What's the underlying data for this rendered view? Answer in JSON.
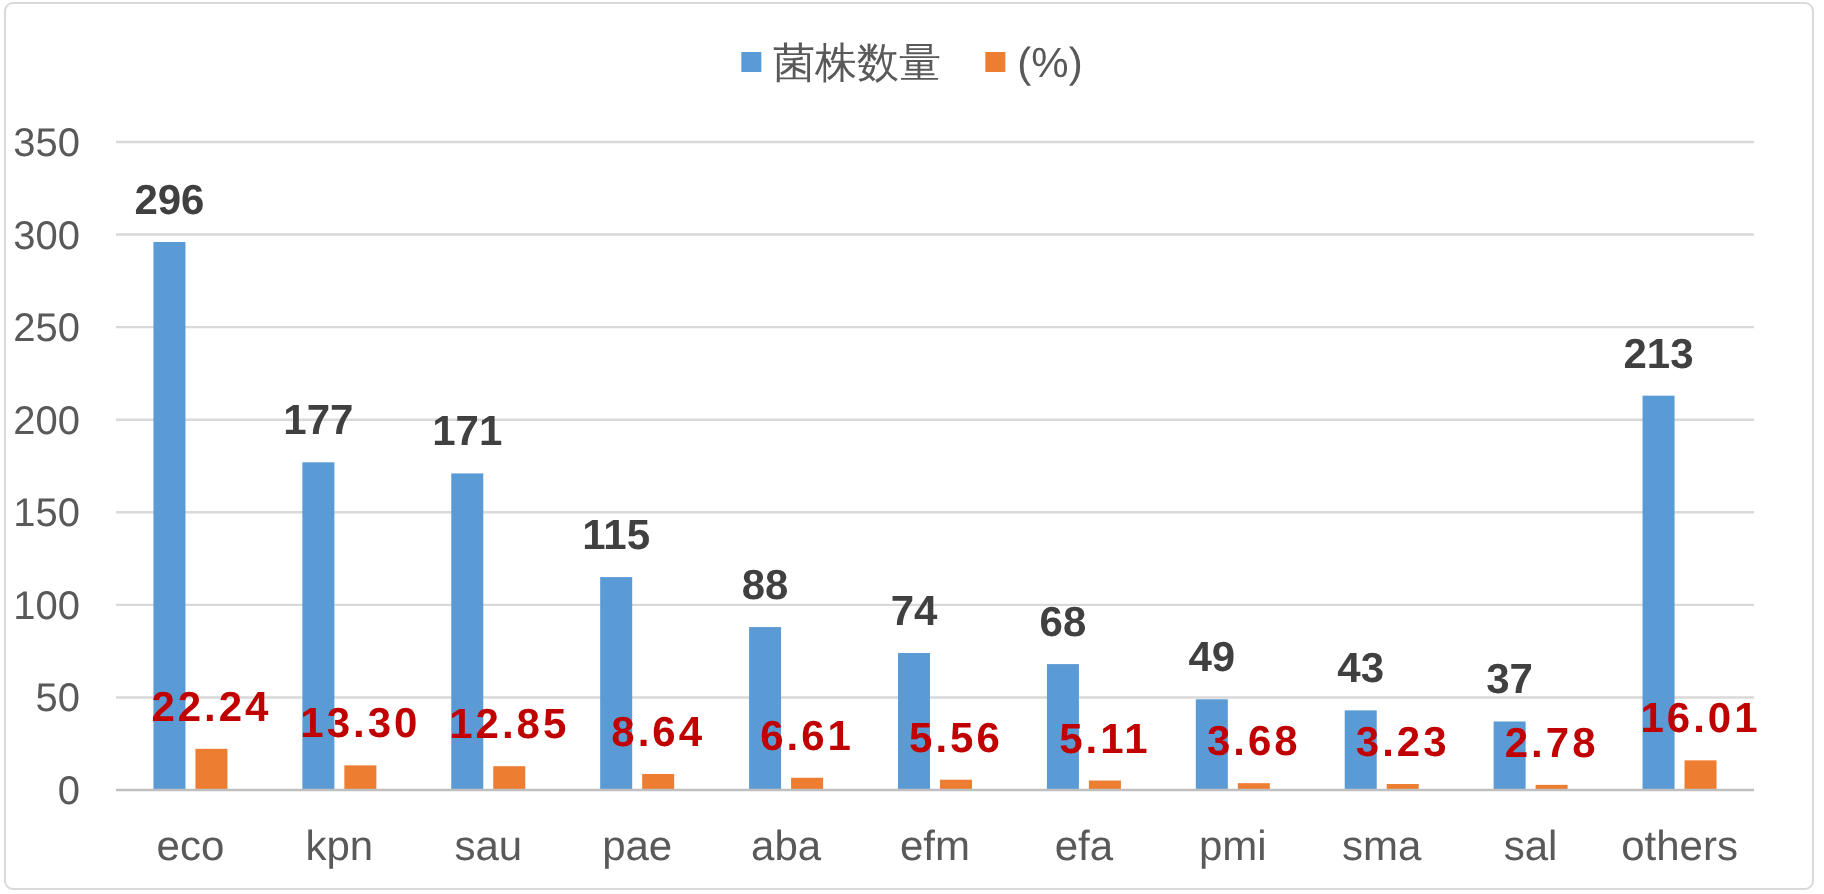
{
  "chart_data": {
    "type": "bar",
    "categories": [
      "eco",
      "kpn",
      "sau",
      "pae",
      "aba",
      "efm",
      "efa",
      "pmi",
      "sma",
      "sal",
      "others"
    ],
    "series": [
      {
        "name": "菌株数量",
        "color": "#5b9bd5",
        "values": [
          296,
          177,
          171,
          115,
          88,
          74,
          68,
          49,
          43,
          37,
          213
        ],
        "value_labels": [
          "296",
          "177",
          "171",
          "115",
          "88",
          "74",
          "68",
          "49",
          "43",
          "37",
          "213"
        ]
      },
      {
        "name": "(%)",
        "color": "#ed7d31",
        "values": [
          22.24,
          13.3,
          12.85,
          8.64,
          6.61,
          5.56,
          5.11,
          3.68,
          3.23,
          2.78,
          16.01
        ],
        "value_labels": [
          "22.24",
          "13.30",
          "12.85",
          "8.64",
          "6.61",
          "5.56",
          "5.11",
          "3.68",
          "3.23",
          "2.78",
          "16.01"
        ]
      }
    ],
    "ylim": [
      0,
      350
    ],
    "yticks": [
      0,
      50,
      100,
      150,
      200,
      250,
      300,
      350
    ],
    "grid": "y",
    "legend": "top"
  }
}
